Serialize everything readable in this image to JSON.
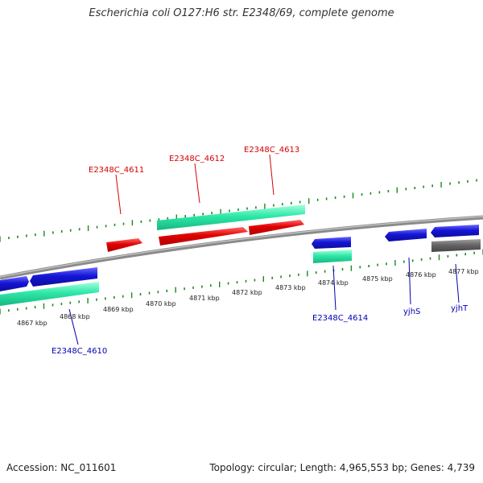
{
  "title": "Escherichia coli O127:H6 str. E2348/69, complete genome",
  "footer": {
    "accession": "Accession: NC_011601",
    "summary": "Topology: circular; Length: 4,965,553 bp; Genes: 4,739"
  },
  "colors": {
    "forward_gene": "#e00000",
    "reverse_gene": "#1515d6",
    "cds": "#2ee8a8",
    "pseudo": "#666666",
    "tick": "#1a8a1a",
    "forward_label": "#d40000",
    "reverse_label": "#0000b0",
    "backbone": "#8a8a8a"
  },
  "axis_labels": {
    "k4867": "4867 kbp",
    "k4868": "4868 kbp",
    "k4869": "4869 kbp",
    "k4870": "4870 kbp",
    "k4871": "4871 kbp",
    "k4872": "4872 kbp",
    "k4873": "4873 kbp",
    "k4874": "4874 kbp",
    "k4875": "4875 kbp",
    "k4876": "4876 kbp",
    "k4877": "4877 kbp"
  },
  "gene_labels": {
    "g4610": "E2348C_4610",
    "g4611": "E2348C_4611",
    "g4612": "E2348C_4612",
    "g4613": "E2348C_4613",
    "g4614": "E2348C_4614",
    "yjhS": "yjhS",
    "yjhT": "yjhT"
  }
}
